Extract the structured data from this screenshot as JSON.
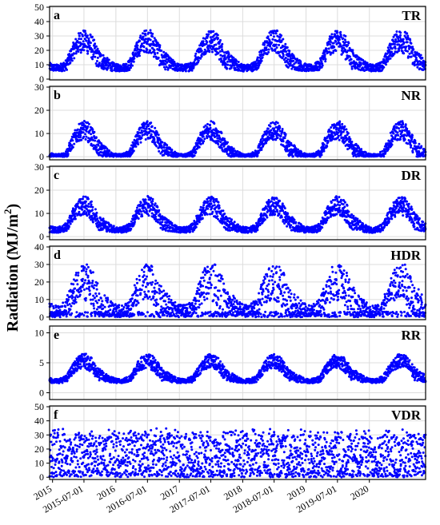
{
  "chart_data": {
    "type": "scatter",
    "ylabel": "Radiation  (MJ/m²)",
    "ylabel_text": "Radiation  (MJ/m",
    "ylabel_sup": "2",
    "ylabel_close": ")",
    "x_range": [
      "2014-12-15",
      "2020-11-20"
    ],
    "x_ticks": [
      "2015",
      "2015-07-01",
      "2016",
      "2016-07-01",
      "2017",
      "2017-07-01",
      "2018",
      "2018-07-01",
      "2019",
      "2019-07-01",
      "2020"
    ],
    "x_tick_dates": [
      "2015-01-01",
      "2015-07-01",
      "2016-01-01",
      "2016-07-01",
      "2017-01-01",
      "2017-07-01",
      "2018-01-01",
      "2018-07-01",
      "2019-01-01",
      "2019-07-01",
      "2020-01-01"
    ],
    "grid": true,
    "marker_color": "#0000ff",
    "panels": [
      {
        "letter": "a",
        "name": "TR",
        "ylim": [
          0,
          50
        ],
        "yticks": [
          0,
          10,
          20,
          30,
          40,
          50
        ],
        "baseline": 8,
        "amplitude": 20,
        "spread": 12,
        "ceiling": 34
      },
      {
        "letter": "b",
        "name": "NR",
        "ylim": [
          -1,
          30
        ],
        "yticks": [
          0,
          10,
          20,
          30
        ],
        "baseline": 0,
        "amplitude": 12,
        "spread": 6,
        "ceiling": 20
      },
      {
        "letter": "c",
        "name": "DR",
        "ylim": [
          -1,
          30
        ],
        "yticks": [
          0,
          10,
          20,
          30
        ],
        "baseline": 3,
        "amplitude": 11,
        "spread": 6,
        "ceiling": 19
      },
      {
        "letter": "d",
        "name": "HDR",
        "ylim": [
          -1,
          40
        ],
        "yticks": [
          0,
          10,
          20,
          30,
          40
        ],
        "baseline": 4,
        "amplitude": 18,
        "spread": 16,
        "ceiling": 30
      },
      {
        "letter": "e",
        "name": "RR",
        "ylim": [
          -1,
          11
        ],
        "yticks": [
          0,
          5,
          10
        ],
        "baseline": 2,
        "amplitude": 3.5,
        "spread": 1.8,
        "ceiling": 10
      },
      {
        "letter": "f",
        "name": "VDR",
        "ylim": [
          -1,
          50
        ],
        "yticks": [
          0,
          10,
          20,
          30,
          40,
          50
        ],
        "baseline": 14,
        "amplitude": 6,
        "spread": 20,
        "ceiling": 36
      }
    ]
  }
}
